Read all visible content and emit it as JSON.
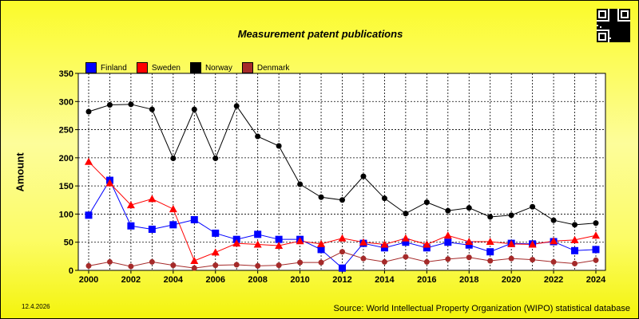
{
  "chart_data": {
    "type": "line",
    "title": "Measurement patent publications",
    "xlabel": "",
    "ylabel": "Amount",
    "ylim": [
      0,
      350
    ],
    "yticks": [
      0,
      50,
      100,
      150,
      200,
      250,
      300,
      350
    ],
    "xticks": [
      2000,
      2002,
      2004,
      2006,
      2008,
      2010,
      2012,
      2014,
      2016,
      2018,
      2020,
      2022,
      2024
    ],
    "x": [
      2000,
      2001,
      2002,
      2003,
      2004,
      2005,
      2006,
      2007,
      2008,
      2009,
      2010,
      2011,
      2012,
      2013,
      2014,
      2015,
      2016,
      2017,
      2018,
      2019,
      2020,
      2021,
      2022,
      2023,
      2024
    ],
    "grid": true,
    "legend": "top-left",
    "series": [
      {
        "name": "Finland",
        "color": "#0000ff",
        "marker": "square",
        "values": [
          98,
          160,
          79,
          73,
          81,
          90,
          66,
          55,
          64,
          55,
          55,
          37,
          4,
          48,
          40,
          50,
          40,
          50,
          45,
          33,
          48,
          47,
          51,
          35,
          37
        ]
      },
      {
        "name": "Sweden",
        "color": "#ff0000",
        "marker": "triangle",
        "values": [
          193,
          155,
          116,
          127,
          109,
          17,
          32,
          48,
          46,
          44,
          52,
          47,
          57,
          50,
          46,
          57,
          46,
          62,
          51,
          51,
          47,
          46,
          52,
          54,
          62
        ]
      },
      {
        "name": "Norway",
        "color": "#000000",
        "marker": "circle",
        "values": [
          282,
          294,
          295,
          286,
          199,
          286,
          199,
          292,
          238,
          221,
          153,
          130,
          125,
          167,
          128,
          101,
          121,
          106,
          111,
          95,
          98,
          113,
          89,
          81,
          84
        ]
      },
      {
        "name": "Denmark",
        "color": "#a52a2a",
        "marker": "circle",
        "values": [
          8,
          15,
          7,
          15,
          9,
          4,
          9,
          10,
          8,
          9,
          14,
          14,
          33,
          21,
          15,
          24,
          15,
          20,
          23,
          17,
          21,
          19,
          15,
          12,
          18
        ]
      }
    ]
  },
  "date": "12.4.2026",
  "source": "Source: World Intellectual Property Organization (WIPO) statistical database"
}
